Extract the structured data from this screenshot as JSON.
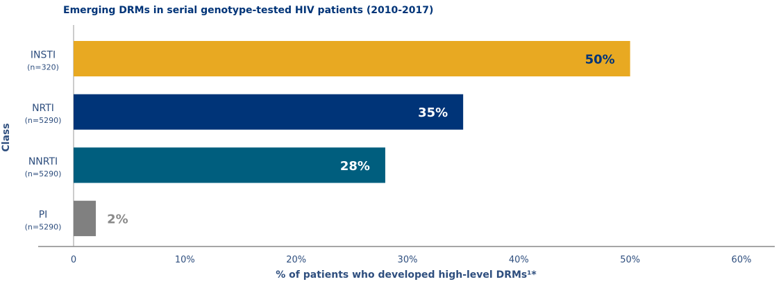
{
  "chart_data": {
    "type": "bar",
    "orientation": "horizontal",
    "title": "Emerging DRMs in serial genotype-tested HIV patients (2010-2017)",
    "xlabel": "% of patients who developed high-level DRMs¹*",
    "ylabel": "Class",
    "xlim": [
      0,
      60
    ],
    "xticks": [
      0,
      10,
      20,
      30,
      40,
      50,
      60
    ],
    "xtick_labels": [
      "0",
      "10%",
      "20%",
      "30%",
      "40%",
      "50%",
      "60%"
    ],
    "grid": false,
    "categories": [
      {
        "name": "INSTI",
        "n": "(n=320)"
      },
      {
        "name": "NRTI",
        "n": "(n=5290)"
      },
      {
        "name": "NNRTI",
        "n": "(n=5290)"
      },
      {
        "name": "PI",
        "n": "(n=5290)"
      }
    ],
    "values": [
      50,
      35,
      28,
      2
    ],
    "data_labels": [
      "50%",
      "35%",
      "28%",
      "2%"
    ],
    "colors": [
      "#E8A922",
      "#003478",
      "#005E7E",
      "#808080"
    ],
    "label_colors": [
      "#003478",
      "#FFFFFF",
      "#FFFFFF",
      "#8A8A8A"
    ],
    "text_color": "#2E4E7E",
    "title_color": "#003478"
  }
}
